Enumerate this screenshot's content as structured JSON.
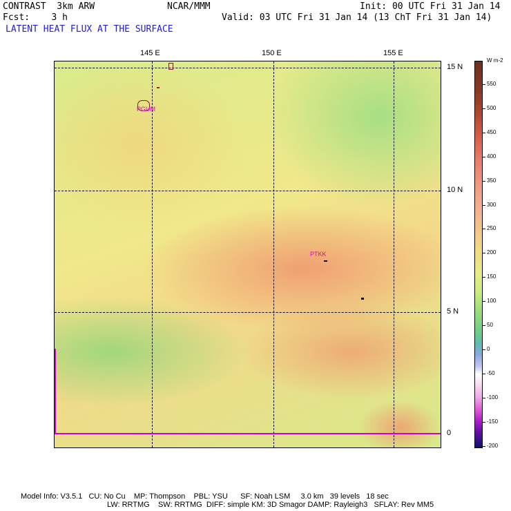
{
  "header": {
    "model": "CONTRAST  3km ARW",
    "center": "NCAR/MMM",
    "init": "Init: 00 UTC Fri 31 Jan 14",
    "fcst": "Fcst:    3 h",
    "valid": "Valid: 03 UTC Fri 31 Jan 14 (13 ChT Fri 31 Jan 14)",
    "field": "LATENT HEAT FLUX AT THE SURFACE"
  },
  "axes": {
    "lon_labels": [
      "145 E",
      "150 E",
      "155 E"
    ],
    "lat_labels": [
      "15 N",
      "10 N",
      "5 N",
      "0"
    ]
  },
  "stations": [
    "PGUM",
    "PTKK"
  ],
  "colorbar": {
    "units": "W m-2",
    "labels": [
      "550",
      "500",
      "450",
      "400",
      "350",
      "300",
      "250",
      "200",
      "150",
      "100",
      "50",
      "0",
      "-50",
      "-100",
      "-150",
      "-200"
    ]
  },
  "footer": {
    "line1": "Model Info: V3.5.1   CU: No Cu    MP: Thompson    PBL: YSU      SF: Noah LSM     3.0 km   39 levels   18 sec",
    "line2": "LW: RRTMG    SW: RRTMG  DIFF: simple KM: 3D Smagor DAMP: Rayleigh3   SFLAY: Rev MM5"
  },
  "colors": {
    "field_title": "#2020d0",
    "station": "#e000d0"
  }
}
